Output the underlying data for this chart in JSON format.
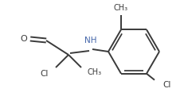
{
  "bg_color": "#ffffff",
  "line_color": "#3a3a3a",
  "line_width": 1.4,
  "text_color": "#3a3a3a",
  "nh_color": "#4466aa",
  "font_size": 7.5,
  "figsize": [
    2.32,
    1.31
  ],
  "dpi": 100,
  "xlim": [
    0,
    232
  ],
  "ylim": [
    0,
    131
  ]
}
